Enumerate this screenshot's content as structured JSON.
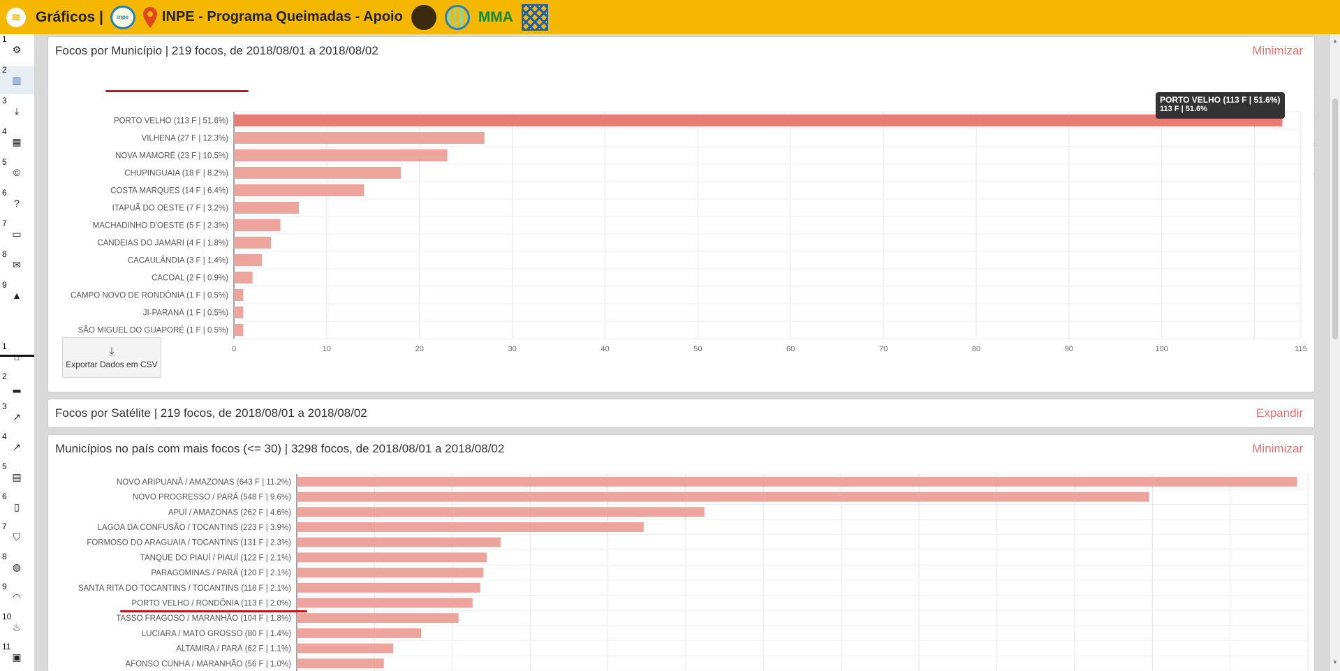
{
  "header": {
    "title": "Gráficos |",
    "program": "INPE - Programa Queimadas - Apoio",
    "mma": "MMA",
    "inpe_logo_text": "inpe"
  },
  "sidebar_top": [
    {
      "num": "1",
      "icon": "cogs-icon",
      "glyph": "⚙"
    },
    {
      "num": "2",
      "icon": "bar-chart-icon",
      "glyph": "▥"
    },
    {
      "num": "3",
      "icon": "download-icon",
      "glyph": "⤓"
    },
    {
      "num": "4",
      "icon": "table-icon",
      "glyph": "▦"
    },
    {
      "num": "5",
      "icon": "copyright-icon",
      "glyph": "©"
    },
    {
      "num": "6",
      "icon": "question-icon",
      "glyph": "?"
    },
    {
      "num": "7",
      "icon": "desktop-icon",
      "glyph": "▭"
    },
    {
      "num": "8",
      "icon": "envelope-icon",
      "glyph": "✉"
    },
    {
      "num": "9",
      "icon": "warning-icon",
      "glyph": "▲"
    }
  ],
  "sidebar_bottom": [
    {
      "num": "1",
      "icon": "home-icon",
      "glyph": "⌂"
    },
    {
      "num": "2",
      "icon": "signal-bars-icon",
      "glyph": "▂"
    },
    {
      "num": "3",
      "icon": "trend-chart-icon",
      "glyph": "↗"
    },
    {
      "num": "4",
      "icon": "trend-chart-2-icon",
      "glyph": "↗"
    },
    {
      "num": "5",
      "icon": "calendar-icon",
      "glyph": "▤"
    },
    {
      "num": "6",
      "icon": "clipboard-icon",
      "glyph": "▯"
    },
    {
      "num": "7",
      "icon": "shield-fire-icon",
      "glyph": "⛉"
    },
    {
      "num": "8",
      "icon": "globe-fire-icon",
      "glyph": "◍"
    },
    {
      "num": "9",
      "icon": "gauge-icon",
      "glyph": "◠"
    },
    {
      "num": "10",
      "icon": "fire-check-icon",
      "glyph": "♨"
    },
    {
      "num": "11",
      "icon": "fire-box-icon",
      "glyph": "▣"
    }
  ],
  "panel1": {
    "title": "Focos por Município | 219 focos, de 2018/08/01 a 2018/08/02",
    "action": "Minimizar",
    "export_label": "Exportar Dados em CSV",
    "tooltip_line1": "PORTO VELHO (113 F | 51.6%)",
    "tooltip_line2": "113 F | 51.6%"
  },
  "panel2": {
    "title": "Focos por Satélite | 219 focos, de 2018/08/01 a 2018/08/02",
    "action": "Expandir"
  },
  "panel3": {
    "title": "Municípios no país com mais focos (<= 30) | 3298 focos, de 2018/08/01 a 2018/08/02",
    "action": "Minimizar"
  },
  "chart_data": [
    {
      "type": "bar",
      "orientation": "horizontal",
      "categories": [
        "PORTO VELHO (113 F | 51.6%)",
        "VILHENA (27 F | 12.3%)",
        "NOVA MAMORÉ (23 F | 10.5%)",
        "CHUPINGUAIA (18 F | 8.2%)",
        "COSTA MARQUES (14 F | 6.4%)",
        "ITAPUÃ DO OESTE (7 F | 3.2%)",
        "MACHADINHO D'OESTE (5 F | 2.3%)",
        "CANDEIAS DO JAMARI (4 F | 1.8%)",
        "CACAULÂNDIA (3 F | 1.4%)",
        "CACOAL (2 F | 0.9%)",
        "CAMPO NOVO DE RONDÔNIA (1 F | 0.5%)",
        "JI-PARANÁ (1 F | 0.5%)",
        "SÃO MIGUEL DO GUAPORÉ (1 F | 0.5%)"
      ],
      "values": [
        113,
        27,
        23,
        18,
        14,
        7,
        5,
        4,
        3,
        2,
        1,
        1,
        1
      ],
      "xlim": [
        0,
        115
      ],
      "xticks": [
        "0",
        "10",
        "20",
        "30",
        "40",
        "50",
        "60",
        "70",
        "80",
        "90",
        "100",
        "115"
      ],
      "xtick_values": [
        0,
        10,
        20,
        30,
        40,
        50,
        60,
        70,
        80,
        90,
        100,
        115
      ],
      "highlight_index": 0,
      "bar_color": "#eda49c",
      "highlight_color": "#e77d72",
      "grid": true
    },
    {
      "type": "bar",
      "orientation": "horizontal",
      "categories": [
        "NOVO ARIPUANÃ / AMAZONAS (643 F | 11.2%)",
        "NOVO PROGRESSO / PARÁ (548 F | 9.6%)",
        "APUÍ / AMAZONAS (262 F | 4.6%)",
        "LAGOA DA CONFUSÃO / TOCANTINS (223 F | 3.9%)",
        "FORMOSO DO ARAGUAIA / TOCANTINS (131 F | 2.3%)",
        "TANQUE DO PIAUÍ / PIAUÍ (122 F | 2.1%)",
        "PARAGOMINAS / PARÁ (120 F | 2.1%)",
        "SANTA RITA DO TOCANTINS / TOCANTINS (118 F | 2.1%)",
        "PORTO VELHO / RONDÔNIA (113 F | 2.0%)",
        "TASSO FRAGOSO / MARANHÃO (104 F | 1.8%)",
        "LUCIARA / MATO GROSSO (80 F | 1.4%)",
        "ALTAMIRA / PARÁ (62 F | 1.1%)",
        "AFONSO CUNHA / MARANHÃO (56 F | 1.0%)"
      ],
      "values": [
        643,
        548,
        262,
        223,
        131,
        122,
        120,
        118,
        113,
        104,
        80,
        62,
        56
      ],
      "xlim": [
        0,
        650
      ],
      "bar_color": "#eda49c",
      "grid": true
    }
  ]
}
